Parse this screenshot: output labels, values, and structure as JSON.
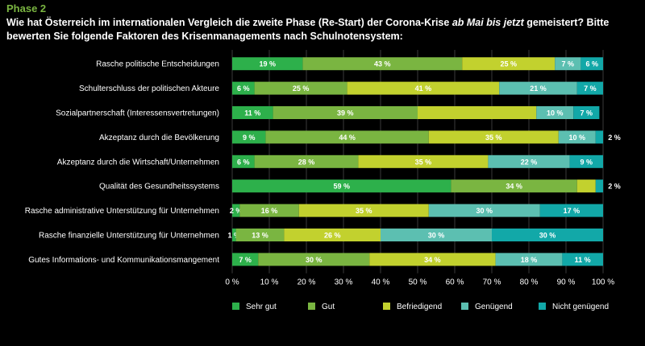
{
  "phase": "Phase 2",
  "title": {
    "before": "Wie hat Österreich im internationalen Vergleich die zweite Phase (Re-Start) der Corona-Krise ",
    "emphasis": "ab Mai bis jetzt",
    "after": " gemeistert? Bitte bewerten Sie folgende Faktoren des Krisenmanagements nach Schulnotensystem:"
  },
  "chart_data": {
    "type": "bar",
    "orientation": "horizontal",
    "stacked": true,
    "xlim": [
      0,
      100
    ],
    "xticks": [
      "0 %",
      "10 %",
      "20 %",
      "30 %",
      "40 %",
      "50 %",
      "60 %",
      "70 %",
      "80 %",
      "90 %",
      "100 %"
    ],
    "grid": true,
    "legend_position": "bottom",
    "categories": [
      "Rasche politische Entscheidungen",
      "Schulterschluss der politischen Akteure",
      "Sozialpartnerschaft (Interessensvertretungen)",
      "Akzeptanz durch die Bevölkerung",
      "Akzeptanz durch die Wirtschaft/Unternehmen",
      "Qualität des Gesundheitssystems",
      "Rasche administrative Unterstützung für Unternehmen",
      "Rasche finanzielle Unterstützung für Unternehmen",
      "Gutes Informations- und Kommunikationsmangement"
    ],
    "series": [
      {
        "name": "Sehr gut",
        "color": "#2db04b",
        "values": [
          19,
          6,
          11,
          9,
          6,
          59,
          2,
          1,
          7
        ]
      },
      {
        "name": "Gut",
        "color": "#7ab541",
        "values": [
          43,
          25,
          39,
          44,
          28,
          34,
          16,
          13,
          30
        ]
      },
      {
        "name": "Befriedigend",
        "color": "#c2d12e",
        "values": [
          25,
          41,
          32,
          35,
          35,
          5,
          35,
          26,
          34
        ]
      },
      {
        "name": "Genügend",
        "color": "#5cbfb1",
        "values": [
          7,
          21,
          10,
          10,
          22,
          0,
          30,
          30,
          18
        ]
      },
      {
        "name": "Nicht genügend",
        "color": "#12a8a8",
        "values": [
          6,
          7,
          7,
          2,
          9,
          2,
          17,
          30,
          11
        ]
      }
    ],
    "data_labels": [
      [
        "19 %",
        "43 %",
        "25 %",
        "7 %",
        "6 %"
      ],
      [
        "6 %",
        "25 %",
        "41 %",
        "21 %",
        "7 %"
      ],
      [
        "11 %",
        "39 %",
        "",
        "10 %",
        "7 %"
      ],
      [
        "9 %",
        "44 %",
        "35 %",
        "10 %",
        "2 %"
      ],
      [
        "6 %",
        "28 %",
        "35 %",
        "22 %",
        "9 %"
      ],
      [
        "59 %",
        "34 %",
        "",
        "",
        "2 %"
      ],
      [
        "2 %",
        "16 %",
        "35 %",
        "30 %",
        "17 %"
      ],
      [
        "1 %",
        "13 %",
        "26 %",
        "30 %",
        "30 %"
      ],
      [
        "7 %",
        "30 %",
        "34 %",
        "18 %",
        "11 %"
      ]
    ]
  }
}
